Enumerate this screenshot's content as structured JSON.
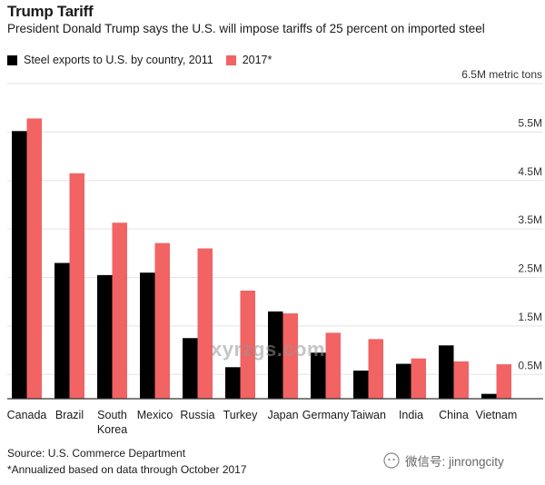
{
  "header": {
    "title": "Trump Tariff",
    "subtitle": "President Donald Trump says the U.S. will impose tariffs of 25 percent on imported steel"
  },
  "legend": {
    "series_2011": "Steel exports to U.S. by country, 2011",
    "series_2017": "2017*"
  },
  "colors": {
    "series_2011": "#000000",
    "series_2017": "#f26363",
    "grid": "#e3e3e3",
    "axis": "#333333"
  },
  "chart_data": {
    "type": "bar",
    "title": "Trump Tariff",
    "ylabel": "metric tons",
    "ylim": [
      0,
      6.5
    ],
    "y_ticks": [
      {
        "value": 0.5,
        "label": "0.5M"
      },
      {
        "value": 1.5,
        "label": "1.5M"
      },
      {
        "value": 2.5,
        "label": "2.5M"
      },
      {
        "value": 3.5,
        "label": "3.5M"
      },
      {
        "value": 4.5,
        "label": "4.5M"
      },
      {
        "value": 5.5,
        "label": "5.5M"
      },
      {
        "value": 6.5,
        "label": "6.5M metric tons"
      }
    ],
    "categories": [
      "Canada",
      "Brazil",
      "South Korea",
      "Mexico",
      "Russia",
      "Turkey",
      "Japan",
      "Germany",
      "Taiwan",
      "India",
      "China",
      "Vietnam"
    ],
    "category_lines": [
      [
        "Canada"
      ],
      [
        "Brazil"
      ],
      [
        "South",
        "Korea"
      ],
      [
        "Mexico"
      ],
      [
        "Russia"
      ],
      [
        "Turkey"
      ],
      [
        "Japan"
      ],
      [
        "Germany"
      ],
      [
        "Taiwan"
      ],
      [
        "India"
      ],
      [
        "China"
      ],
      [
        "Vietnam"
      ]
    ],
    "series": [
      {
        "name": "Steel exports to U.S. by country, 2011",
        "values": [
          5.52,
          2.8,
          2.55,
          2.6,
          1.25,
          0.65,
          1.8,
          0.95,
          0.58,
          0.72,
          1.1,
          0.1
        ]
      },
      {
        "name": "2017*",
        "values": [
          5.78,
          4.65,
          3.63,
          3.21,
          3.1,
          2.23,
          1.76,
          1.36,
          1.23,
          0.83,
          0.77,
          0.71
        ]
      }
    ]
  },
  "footer": {
    "source": "Source: U.S. Commerce Department",
    "footnote": "*Annualized based on data through October 2017"
  },
  "watermarks": {
    "center": "xyrzgs.com",
    "corner": "微信号: jinrongcity"
  }
}
